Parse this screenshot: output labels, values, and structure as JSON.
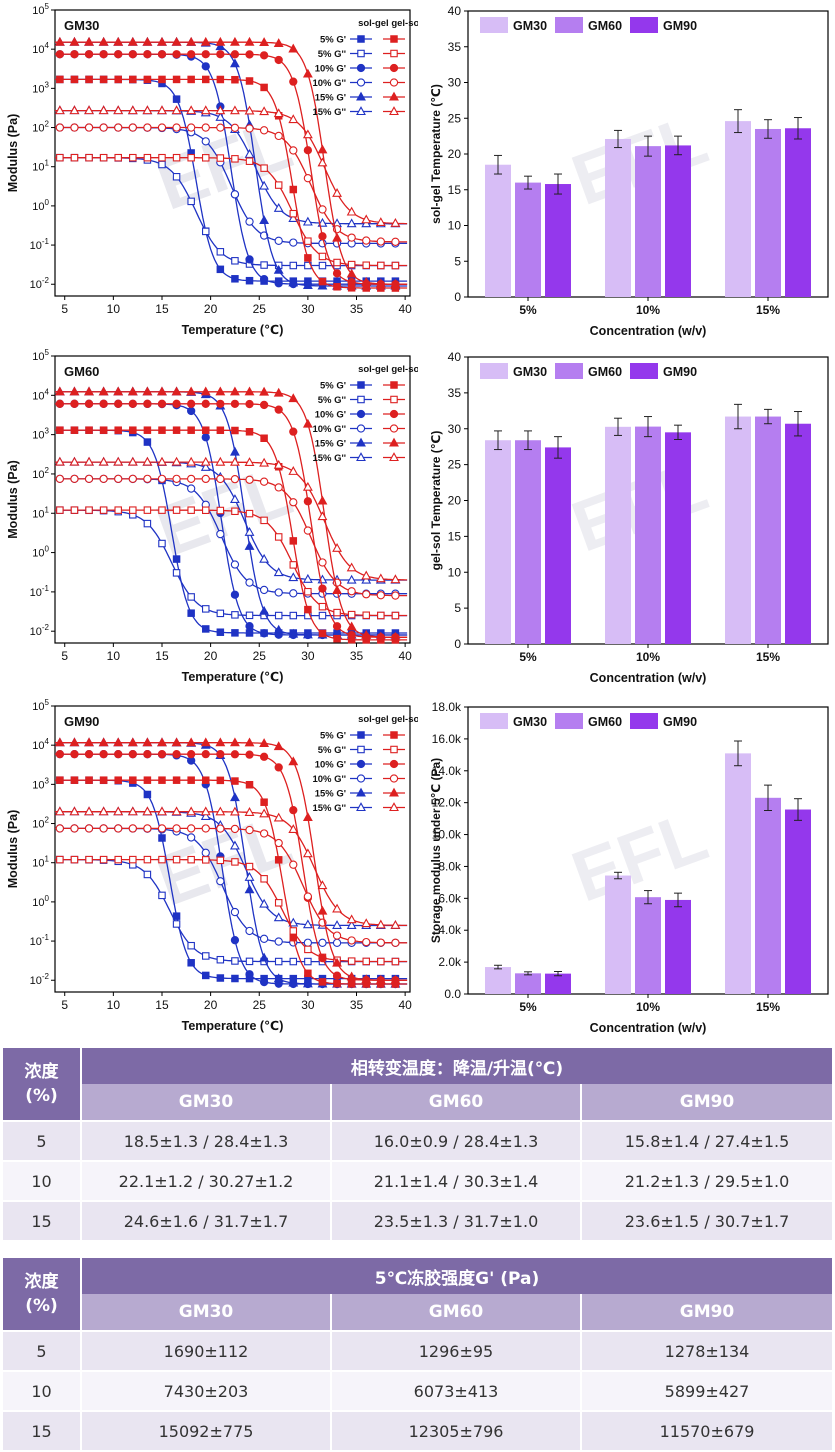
{
  "chart_data": [
    {
      "type": "line",
      "id": "rheo-gm30",
      "title": "GM30",
      "xlabel": "Temperature (℃)",
      "ylabel": "Modulus (Pa)",
      "yscale": "log",
      "xlim": [
        4,
        40.5
      ],
      "ylim_exp": [
        -2.3,
        5
      ],
      "xticks": [
        5,
        10,
        15,
        20,
        25,
        30,
        35,
        40
      ],
      "ytick_exps": [
        -2,
        -1,
        0,
        1,
        2,
        3,
        4,
        5
      ],
      "legend_header": "sol-gel gel-sol",
      "legend": [
        "5%  G'",
        "5%  G''",
        "10% G'",
        "10% G''",
        "15% G'",
        "15% G''"
      ],
      "series": [
        {
          "name": "5% G' sol-gel",
          "color": "#1f33c4",
          "marker": "square",
          "filled": true,
          "hi": 1690,
          "lo": 0.012,
          "t": 18.5,
          "k": 0.9
        },
        {
          "name": "5% G'' sol-gel",
          "color": "#1f33c4",
          "marker": "square",
          "filled": false,
          "hi": 17,
          "lo": 0.03,
          "t": 18.5,
          "k": 1.3
        },
        {
          "name": "10% G' sol-gel",
          "color": "#1f33c4",
          "marker": "circle",
          "filled": true,
          "hi": 7430,
          "lo": 0.01,
          "t": 22.1,
          "k": 0.9
        },
        {
          "name": "10% G'' sol-gel",
          "color": "#1f33c4",
          "marker": "circle",
          "filled": false,
          "hi": 100,
          "lo": 0.11,
          "t": 22.1,
          "k": 1.3
        },
        {
          "name": "15% G' sol-gel",
          "color": "#1f33c4",
          "marker": "triangle",
          "filled": true,
          "hi": 15092,
          "lo": 0.009,
          "t": 24.6,
          "k": 0.9
        },
        {
          "name": "15% G'' sol-gel",
          "color": "#1f33c4",
          "marker": "triangle",
          "filled": false,
          "hi": 270,
          "lo": 0.35,
          "t": 24.6,
          "k": 1.3
        },
        {
          "name": "5% G' gel-sol",
          "color": "#dd2020",
          "marker": "square",
          "filled": true,
          "hi": 1690,
          "lo": 0.008,
          "t": 28.4,
          "k": 0.9
        },
        {
          "name": "5% G'' gel-sol",
          "color": "#dd2020",
          "marker": "square",
          "filled": false,
          "hi": 17,
          "lo": 0.03,
          "t": 28.4,
          "k": 1.3
        },
        {
          "name": "10% G' gel-sol",
          "color": "#dd2020",
          "marker": "circle",
          "filled": true,
          "hi": 7430,
          "lo": 0.01,
          "t": 30.3,
          "k": 0.9
        },
        {
          "name": "10% G'' gel-sol",
          "color": "#dd2020",
          "marker": "circle",
          "filled": false,
          "hi": 100,
          "lo": 0.12,
          "t": 30.3,
          "k": 1.3
        },
        {
          "name": "15% G' gel-sol",
          "color": "#dd2020",
          "marker": "triangle",
          "filled": true,
          "hi": 15092,
          "lo": 0.01,
          "t": 31.7,
          "k": 0.9
        },
        {
          "name": "15% G'' gel-sol",
          "color": "#dd2020",
          "marker": "triangle",
          "filled": false,
          "hi": 270,
          "lo": 0.35,
          "t": 31.7,
          "k": 1.3
        }
      ]
    },
    {
      "type": "bar",
      "id": "bar-solgel",
      "title": "",
      "xlabel": "Concentration (w/v)",
      "ylabel": "sol-gel Temperature (℃)",
      "ylim": [
        0,
        40
      ],
      "yticks": [
        0,
        5,
        10,
        15,
        20,
        25,
        30,
        35,
        40
      ],
      "categories": [
        "5%",
        "10%",
        "15%"
      ],
      "series": [
        {
          "name": "GM30",
          "color": "#d7bdf6",
          "values": [
            18.5,
            22.1,
            24.6
          ],
          "errors": [
            1.3,
            1.2,
            1.6
          ]
        },
        {
          "name": "GM60",
          "color": "#b57ef0",
          "values": [
            16.0,
            21.1,
            23.5
          ],
          "errors": [
            0.9,
            1.4,
            1.3
          ]
        },
        {
          "name": "GM90",
          "color": "#9438ec",
          "values": [
            15.8,
            21.2,
            23.6
          ],
          "errors": [
            1.4,
            1.3,
            1.5
          ]
        }
      ]
    },
    {
      "type": "line",
      "id": "rheo-gm60",
      "title": "GM60",
      "xlabel": "Temperature (℃)",
      "ylabel": "Modulus (Pa)",
      "yscale": "log",
      "xlim": [
        4,
        40.5
      ],
      "ylim_exp": [
        -2.3,
        5
      ],
      "xticks": [
        5,
        10,
        15,
        20,
        25,
        30,
        35,
        40
      ],
      "ytick_exps": [
        -2,
        -1,
        0,
        1,
        2,
        3,
        4,
        5
      ],
      "legend_header": "sol-gel gel-sol",
      "legend": [
        "5%  G'",
        "5%  G''",
        "10% G'",
        "10% G''",
        "15% G'",
        "15% G''"
      ],
      "series": [
        {
          "name": "5% G' sol-gel",
          "color": "#1f33c4",
          "marker": "square",
          "filled": true,
          "hi": 1296,
          "lo": 0.009,
          "t": 16.0,
          "k": 0.9
        },
        {
          "name": "5% G'' sol-gel",
          "color": "#1f33c4",
          "marker": "square",
          "filled": false,
          "hi": 12,
          "lo": 0.025,
          "t": 16.0,
          "k": 1.3
        },
        {
          "name": "10% G' sol-gel",
          "color": "#1f33c4",
          "marker": "circle",
          "filled": true,
          "hi": 6073,
          "lo": 0.008,
          "t": 21.1,
          "k": 0.9
        },
        {
          "name": "10% G'' sol-gel",
          "color": "#1f33c4",
          "marker": "circle",
          "filled": false,
          "hi": 75,
          "lo": 0.09,
          "t": 21.1,
          "k": 1.3
        },
        {
          "name": "15% G' sol-gel",
          "color": "#1f33c4",
          "marker": "triangle",
          "filled": true,
          "hi": 12305,
          "lo": 0.008,
          "t": 23.5,
          "k": 0.9
        },
        {
          "name": "15% G'' sol-gel",
          "color": "#1f33c4",
          "marker": "triangle",
          "filled": false,
          "hi": 200,
          "lo": 0.2,
          "t": 23.5,
          "k": 1.3
        },
        {
          "name": "5% G' gel-sol",
          "color": "#dd2020",
          "marker": "square",
          "filled": true,
          "hi": 1296,
          "lo": 0.006,
          "t": 28.4,
          "k": 0.9
        },
        {
          "name": "5% G'' gel-sol",
          "color": "#dd2020",
          "marker": "square",
          "filled": false,
          "hi": 12,
          "lo": 0.025,
          "t": 28.4,
          "k": 1.3
        },
        {
          "name": "10% G' gel-sol",
          "color": "#dd2020",
          "marker": "circle",
          "filled": true,
          "hi": 6073,
          "lo": 0.007,
          "t": 30.3,
          "k": 0.9
        },
        {
          "name": "10% G'' gel-sol",
          "color": "#dd2020",
          "marker": "circle",
          "filled": false,
          "hi": 75,
          "lo": 0.08,
          "t": 30.3,
          "k": 1.3
        },
        {
          "name": "15% G' gel-sol",
          "color": "#dd2020",
          "marker": "triangle",
          "filled": true,
          "hi": 12305,
          "lo": 0.007,
          "t": 31.7,
          "k": 0.9
        },
        {
          "name": "15% G'' gel-sol",
          "color": "#dd2020",
          "marker": "triangle",
          "filled": false,
          "hi": 200,
          "lo": 0.2,
          "t": 31.7,
          "k": 1.3
        }
      ]
    },
    {
      "type": "bar",
      "id": "bar-gelsol",
      "title": "",
      "xlabel": "Concentration (w/v)",
      "ylabel": "gel-sol Temperature (℃)",
      "ylim": [
        0,
        40
      ],
      "yticks": [
        0,
        5,
        10,
        15,
        20,
        25,
        30,
        35,
        40
      ],
      "categories": [
        "5%",
        "10%",
        "15%"
      ],
      "series": [
        {
          "name": "GM30",
          "color": "#d7bdf6",
          "values": [
            28.4,
            30.27,
            31.7
          ],
          "errors": [
            1.3,
            1.2,
            1.7
          ]
        },
        {
          "name": "GM60",
          "color": "#b57ef0",
          "values": [
            28.4,
            30.3,
            31.7
          ],
          "errors": [
            1.3,
            1.4,
            1.0
          ]
        },
        {
          "name": "GM90",
          "color": "#9438ec",
          "values": [
            27.4,
            29.5,
            30.7
          ],
          "errors": [
            1.5,
            1.0,
            1.7
          ]
        }
      ]
    },
    {
      "type": "line",
      "id": "rheo-gm90",
      "title": "GM90",
      "xlabel": "Temperature (℃)",
      "ylabel": "Modulus (Pa)",
      "yscale": "log",
      "xlim": [
        4,
        40.5
      ],
      "ylim_exp": [
        -2.3,
        5
      ],
      "xticks": [
        5,
        10,
        15,
        20,
        25,
        30,
        35,
        40
      ],
      "ytick_exps": [
        -2,
        -1,
        0,
        1,
        2,
        3,
        4,
        5
      ],
      "legend_header": "sol-gel gel-sol",
      "legend": [
        "5%  G'",
        "5%  G''",
        "10% G'",
        "10% G''",
        "15% G'",
        "15% G''"
      ],
      "series": [
        {
          "name": "5% G' sol-gel",
          "color": "#1f33c4",
          "marker": "square",
          "filled": true,
          "hi": 1278,
          "lo": 0.011,
          "t": 15.8,
          "k": 0.9
        },
        {
          "name": "5% G'' sol-gel",
          "color": "#1f33c4",
          "marker": "square",
          "filled": false,
          "hi": 12,
          "lo": 0.03,
          "t": 15.8,
          "k": 1.3
        },
        {
          "name": "10% G' sol-gel",
          "color": "#1f33c4",
          "marker": "circle",
          "filled": true,
          "hi": 5899,
          "lo": 0.008,
          "t": 21.2,
          "k": 0.9
        },
        {
          "name": "10% G'' sol-gel",
          "color": "#1f33c4",
          "marker": "circle",
          "filled": false,
          "hi": 75,
          "lo": 0.09,
          "t": 21.2,
          "k": 1.3
        },
        {
          "name": "15% G' sol-gel",
          "color": "#1f33c4",
          "marker": "triangle",
          "filled": true,
          "hi": 11570,
          "lo": 0.008,
          "t": 23.6,
          "k": 0.9
        },
        {
          "name": "15% G'' sol-gel",
          "color": "#1f33c4",
          "marker": "triangle",
          "filled": false,
          "hi": 200,
          "lo": 0.25,
          "t": 23.6,
          "k": 1.3
        },
        {
          "name": "5% G' gel-sol",
          "color": "#dd2020",
          "marker": "square",
          "filled": true,
          "hi": 1278,
          "lo": 0.008,
          "t": 27.4,
          "k": 0.9
        },
        {
          "name": "5% G'' gel-sol",
          "color": "#dd2020",
          "marker": "square",
          "filled": false,
          "hi": 12,
          "lo": 0.03,
          "t": 27.4,
          "k": 1.3
        },
        {
          "name": "10% G' gel-sol",
          "color": "#dd2020",
          "marker": "circle",
          "filled": true,
          "hi": 5899,
          "lo": 0.01,
          "t": 29.5,
          "k": 0.9
        },
        {
          "name": "10% G'' gel-sol",
          "color": "#dd2020",
          "marker": "circle",
          "filled": false,
          "hi": 75,
          "lo": 0.09,
          "t": 29.5,
          "k": 1.3
        },
        {
          "name": "15% G' gel-sol",
          "color": "#dd2020",
          "marker": "triangle",
          "filled": true,
          "hi": 11570,
          "lo": 0.01,
          "t": 30.7,
          "k": 0.9
        },
        {
          "name": "15% G'' gel-sol",
          "color": "#dd2020",
          "marker": "triangle",
          "filled": false,
          "hi": 200,
          "lo": 0.25,
          "t": 30.7,
          "k": 1.3
        }
      ]
    },
    {
      "type": "bar",
      "id": "bar-storage",
      "title": "",
      "xlabel": "Concentration (w/v)",
      "ylabel": "Storage modulus under 5℃ (Pa)",
      "ylim": [
        0,
        18000
      ],
      "yticks": [
        0,
        2000,
        4000,
        6000,
        8000,
        10000,
        12000,
        14000,
        16000,
        18000
      ],
      "ytick_labels": [
        "0.0",
        "2.0k",
        "4.0k",
        "6.0k",
        "8.0k",
        "10.0k",
        "12.0k",
        "14.0k",
        "16.0k",
        "18.0k"
      ],
      "categories": [
        "5%",
        "10%",
        "15%"
      ],
      "series": [
        {
          "name": "GM30",
          "color": "#d7bdf6",
          "values": [
            1690,
            7430,
            15092
          ],
          "errors": [
            112,
            203,
            775
          ]
        },
        {
          "name": "GM60",
          "color": "#b57ef0",
          "values": [
            1296,
            6073,
            12305
          ],
          "errors": [
            95,
            413,
            796
          ]
        },
        {
          "name": "GM90",
          "color": "#9438ec",
          "values": [
            1278,
            5899,
            11570
          ],
          "errors": [
            134,
            427,
            679
          ]
        }
      ]
    }
  ],
  "watermark": "EFL",
  "tables": [
    {
      "corner_label": "浓度\n(%)",
      "group_header": "相转变温度：降温/升温(℃)",
      "columns": [
        "GM30",
        "GM60",
        "GM90"
      ],
      "rows": [
        {
          "conc": "5",
          "cells": [
            "18.5±1.3 / 28.4±1.3",
            "16.0±0.9 / 28.4±1.3",
            "15.8±1.4 / 27.4±1.5"
          ]
        },
        {
          "conc": "10",
          "cells": [
            "22.1±1.2 / 30.27±1.2",
            "21.1±1.4 / 30.3±1.4",
            "21.2±1.3 / 29.5±1.0"
          ]
        },
        {
          "conc": "15",
          "cells": [
            "24.6±1.6 / 31.7±1.7",
            "23.5±1.3 / 31.7±1.0",
            "23.6±1.5 / 30.7±1.7"
          ]
        }
      ]
    },
    {
      "corner_label": "浓度\n(%)",
      "group_header": "5℃冻胶强度G' (Pa)",
      "columns": [
        "GM30",
        "GM60",
        "GM90"
      ],
      "rows": [
        {
          "conc": "5",
          "cells": [
            "1690±112",
            "1296±95",
            "1278±134"
          ]
        },
        {
          "conc": "10",
          "cells": [
            "7430±203",
            "6073±413",
            "5899±427"
          ]
        },
        {
          "conc": "15",
          "cells": [
            "15092±775",
            "12305±796",
            "11570±679"
          ]
        }
      ]
    }
  ]
}
